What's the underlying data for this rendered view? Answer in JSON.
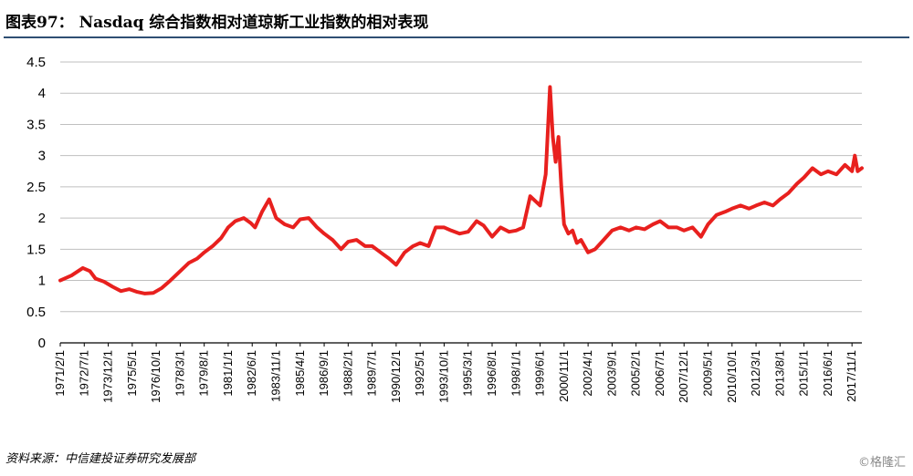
{
  "header": {
    "title": "图表97：  Nasdaq 综合指数相对道琼斯工业指数的相对表现"
  },
  "footer": {
    "source": "资料来源：中信建投证券研究发展部",
    "watermark": "©格隆汇"
  },
  "colors": {
    "line": "#e8201e",
    "rule": "#2f4f73",
    "grid": "#bfbfbf"
  },
  "chart_data": {
    "type": "line",
    "title": "",
    "xlabel": "",
    "ylabel": "",
    "ylim": [
      0,
      4.5
    ],
    "yticks": [
      "0",
      "0.5",
      "1",
      "1.5",
      "2",
      "2.5",
      "3",
      "3.5",
      "4",
      "4.5"
    ],
    "xticks": [
      "1971/2/1",
      "1972/7/1",
      "1973/12/1",
      "1975/5/1",
      "1976/10/1",
      "1978/3/1",
      "1979/8/1",
      "1981/1/1",
      "1982/6/1",
      "1983/11/1",
      "1985/4/1",
      "1986/9/1",
      "1988/2/1",
      "1989/7/1",
      "1990/12/1",
      "1992/5/1",
      "1993/10/1",
      "1995/3/1",
      "1996/8/1",
      "1998/1/1",
      "1999/6/1",
      "2000/11/1",
      "2002/4/1",
      "2003/9/1",
      "2005/2/1",
      "2006/7/1",
      "2007/12/1",
      "2009/5/1",
      "2010/10/1",
      "2012/3/1",
      "2013/8/1",
      "2015/1/1",
      "2016/6/1",
      "2017/11/1"
    ],
    "grid": true,
    "legend": "none",
    "series": [
      {
        "x": [
          "1971/2/1",
          "1971/10/1",
          "1972/6/1",
          "1972/11/1",
          "1973/3/1",
          "1973/9/1",
          "1974/3/1",
          "1974/9/1",
          "1975/3/1",
          "1975/8/1",
          "1976/2/1",
          "1976/8/1",
          "1977/2/1",
          "1977/8/1",
          "1978/3/1",
          "1978/9/1",
          "1979/3/1",
          "1979/8/1",
          "1980/2/1",
          "1980/8/1",
          "1981/1/1",
          "1981/6/1",
          "1981/12/1",
          "1982/5/1",
          "1982/8/1",
          "1983/1/1",
          "1983/6/1",
          "1983/11/1",
          "1984/5/1",
          "1984/11/1",
          "1985/4/1",
          "1985/10/1",
          "1986/4/1",
          "1986/9/1",
          "1987/3/1",
          "1987/9/1",
          "1988/2/1",
          "1988/8/1",
          "1989/2/1",
          "1989/7/1",
          "1990/1/1",
          "1990/7/1",
          "1990/12/1",
          "1991/6/1",
          "1991/12/1",
          "1992/5/1",
          "1992/11/1",
          "1993/4/1",
          "1993/10/1",
          "1994/3/1",
          "1994/9/1",
          "1995/3/1",
          "1995/9/1",
          "1996/2/1",
          "1996/8/1",
          "1997/2/1",
          "1997/8/1",
          "1998/1/1",
          "1998/6/1",
          "1998/11/1",
          "1999/6/1",
          "1999/10/1",
          "2000/1/1",
          "2000/3/1",
          "2000/5/1",
          "2000/7/1",
          "2000/9/1",
          "2000/11/1",
          "2001/2/1",
          "2001/5/1",
          "2001/8/1",
          "2001/11/1",
          "2002/4/1",
          "2002/9/1",
          "2003/3/1",
          "2003/9/1",
          "2004/3/1",
          "2004/9/1",
          "2005/2/1",
          "2005/8/1",
          "2006/2/1",
          "2006/7/1",
          "2007/1/1",
          "2007/7/1",
          "2007/12/1",
          "2008/6/1",
          "2008/12/1",
          "2009/5/1",
          "2009/11/1",
          "2010/5/1",
          "2010/10/1",
          "2011/4/1",
          "2011/10/1",
          "2012/3/1",
          "2012/9/1",
          "2013/3/1",
          "2013/8/1",
          "2014/2/1",
          "2014/8/1",
          "2015/1/1",
          "2015/7/1",
          "2016/1/1",
          "2016/6/1",
          "2016/12/1",
          "2017/6/1",
          "2017/11/1",
          "2018/1/1",
          "2018/3/1",
          "2018/6/1"
        ],
        "values": [
          1.0,
          1.08,
          1.2,
          1.15,
          1.03,
          0.98,
          0.9,
          0.83,
          0.86,
          0.82,
          0.79,
          0.8,
          0.88,
          1.0,
          1.15,
          1.28,
          1.35,
          1.45,
          1.55,
          1.68,
          1.85,
          1.95,
          2.0,
          1.92,
          1.85,
          2.1,
          2.3,
          2.0,
          1.9,
          1.85,
          1.98,
          2.0,
          1.85,
          1.75,
          1.65,
          1.5,
          1.62,
          1.65,
          1.55,
          1.55,
          1.45,
          1.35,
          1.25,
          1.45,
          1.55,
          1.6,
          1.55,
          1.85,
          1.85,
          1.8,
          1.75,
          1.78,
          1.95,
          1.88,
          1.7,
          1.85,
          1.78,
          1.8,
          1.85,
          2.35,
          2.2,
          2.7,
          4.1,
          3.3,
          2.9,
          3.3,
          2.5,
          1.9,
          1.75,
          1.8,
          1.6,
          1.65,
          1.45,
          1.5,
          1.65,
          1.8,
          1.85,
          1.8,
          1.85,
          1.82,
          1.9,
          1.95,
          1.85,
          1.85,
          1.8,
          1.85,
          1.7,
          1.9,
          2.05,
          2.1,
          2.15,
          2.2,
          2.15,
          2.2,
          2.25,
          2.2,
          2.3,
          2.4,
          2.55,
          2.65,
          2.8,
          2.7,
          2.75,
          2.7,
          2.85,
          2.75,
          3.0,
          2.75,
          2.8
        ]
      }
    ]
  }
}
